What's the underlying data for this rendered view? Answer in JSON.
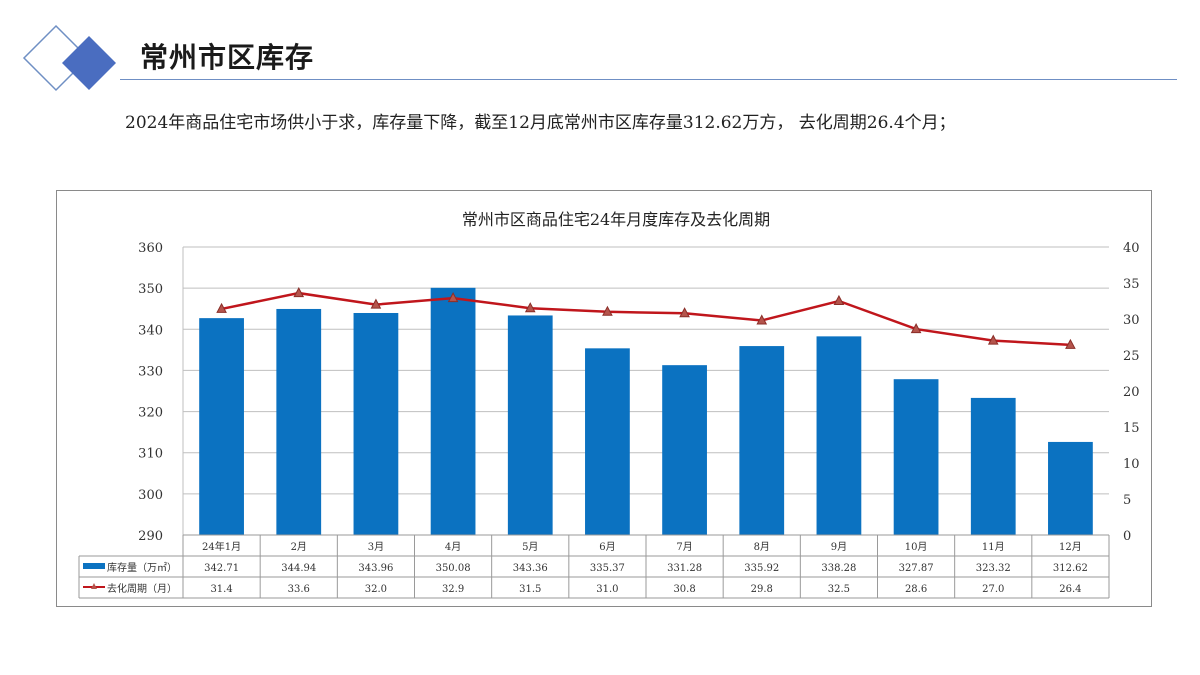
{
  "header": {
    "title": "常州市区库存",
    "summary": "2024年商品住宅市场供小于求，库存量下降，截至12月底常州市区库存量312.62万方， 去化周期26.4个月；"
  },
  "colors": {
    "bar": "#0B72C1",
    "line": "#C0161C",
    "marker": "#B5544C",
    "logo_dark": "#4A6DC0",
    "logo_outline": "#6f8fc4"
  },
  "chart_data": {
    "type": "bar",
    "title": "常州市区商品住宅24年月度库存及去化周期",
    "categories": [
      "24年1月",
      "2月",
      "3月",
      "4月",
      "5月",
      "6月",
      "7月",
      "8月",
      "9月",
      "10月",
      "11月",
      "12月"
    ],
    "series": [
      {
        "name": "库存量（万㎡）",
        "type": "bar",
        "axis": "left",
        "values": [
          342.71,
          344.94,
          343.96,
          350.08,
          343.36,
          335.37,
          331.28,
          335.92,
          338.28,
          327.87,
          323.32,
          312.62
        ],
        "labels": [
          "342.71",
          "344.94",
          "343.96",
          "350.08",
          "343.36",
          "335.37",
          "331.28",
          "335.92",
          "338.28",
          "327.87",
          "323.32",
          "312.62"
        ]
      },
      {
        "name": "去化周期（月）",
        "type": "line",
        "axis": "right",
        "values": [
          31.4,
          33.6,
          32.0,
          32.9,
          31.5,
          31.0,
          30.8,
          29.8,
          32.5,
          28.6,
          27.0,
          26.4
        ],
        "labels": [
          "31.4",
          "33.6",
          "32.0",
          "32.9",
          "31.5",
          "31.0",
          "30.8",
          "29.8",
          "32.5",
          "28.6",
          "27.0",
          "26.4"
        ]
      }
    ],
    "y_left": {
      "min": 290,
      "max": 360,
      "step": 10,
      "ticks": [
        "290",
        "300",
        "310",
        "320",
        "330",
        "340",
        "350",
        "360"
      ]
    },
    "y_right": {
      "min": 0,
      "max": 40,
      "step": 5,
      "ticks": [
        "0",
        "5",
        "10",
        "15",
        "20",
        "25",
        "30",
        "35",
        "40"
      ]
    },
    "grid": true,
    "legend": "data-table-left"
  }
}
